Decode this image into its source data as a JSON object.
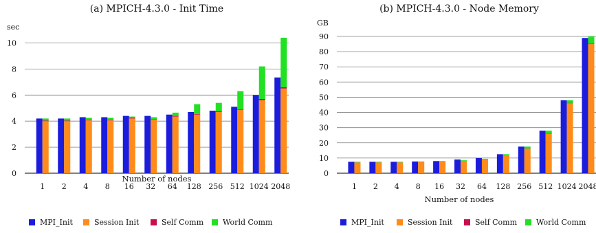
{
  "colors": {
    "mpi_init": "#1c1cdc",
    "session_init": "#ff8c1a",
    "self_comm": "#c8104a",
    "world_comm": "#22e022"
  },
  "legend": [
    "MPI_Init",
    "Session Init",
    "Self Comm",
    "World Comm"
  ],
  "chart_data": [
    {
      "type": "bar",
      "title": "(a) MPICH-4.3.0 - Init Time",
      "ylabel": "sec",
      "xlabel": "Number of nodes",
      "ylim": [
        0,
        11
      ],
      "yticks": [
        0,
        2,
        4,
        6,
        8,
        10
      ],
      "grid": true,
      "legend_position": "bottom",
      "categories": [
        "1",
        "2",
        "4",
        "8",
        "16",
        "32",
        "64",
        "128",
        "256",
        "512",
        "1024",
        "2048"
      ],
      "series": [
        {
          "name": "MPI_Init",
          "values": [
            4.2,
            4.2,
            4.3,
            4.3,
            4.4,
            4.4,
            4.5,
            4.7,
            4.8,
            5.1,
            6.0,
            7.35
          ]
        },
        {
          "name": "Session Init",
          "values": [
            4.0,
            4.0,
            4.05,
            4.05,
            4.2,
            4.1,
            4.35,
            4.5,
            4.7,
            4.85,
            5.6,
            6.5
          ],
          "stack": "b"
        },
        {
          "name": "Self Comm",
          "values": [
            0.05,
            0.05,
            0.05,
            0.05,
            0.05,
            0.05,
            0.05,
            0.05,
            0.05,
            0.05,
            0.1,
            0.1
          ],
          "stack": "b"
        },
        {
          "name": "World Comm",
          "values": [
            0.15,
            0.15,
            0.15,
            0.15,
            0.1,
            0.15,
            0.25,
            0.75,
            0.65,
            1.4,
            2.5,
            3.8
          ],
          "stack": "b"
        }
      ]
    },
    {
      "type": "bar",
      "title": "(b) MPICH-4.3.0 - Node Memory",
      "ylabel": "GB",
      "xlabel": "Number of nodes",
      "ylim": [
        0,
        95
      ],
      "yticks": [
        0,
        10,
        20,
        30,
        40,
        50,
        60,
        70,
        80,
        90
      ],
      "grid": true,
      "legend_position": "bottom",
      "categories": [
        "1",
        "2",
        "4",
        "8",
        "16",
        "32",
        "64",
        "128",
        "256",
        "512",
        "1024",
        "2048"
      ],
      "series": [
        {
          "name": "MPI_Init",
          "values": [
            7.5,
            7.5,
            7.5,
            7.7,
            8.0,
            9.0,
            10.0,
            12.5,
            17.5,
            28.0,
            48.0,
            89.0
          ]
        },
        {
          "name": "Session Init",
          "values": [
            7.0,
            7.0,
            7.0,
            7.2,
            7.6,
            8.0,
            9.0,
            11.5,
            16.0,
            26.0,
            46.0,
            85.0
          ],
          "stack": "b"
        },
        {
          "name": "Self Comm",
          "values": [
            0.1,
            0.1,
            0.1,
            0.1,
            0.1,
            0.1,
            0.1,
            0.1,
            0.2,
            0.2,
            0.3,
            0.3
          ],
          "stack": "b"
        },
        {
          "name": "World Comm",
          "values": [
            0.4,
            0.4,
            0.4,
            0.4,
            0.3,
            0.4,
            0.4,
            0.9,
            1.3,
            1.8,
            1.7,
            4.7
          ],
          "stack": "b"
        }
      ]
    }
  ]
}
